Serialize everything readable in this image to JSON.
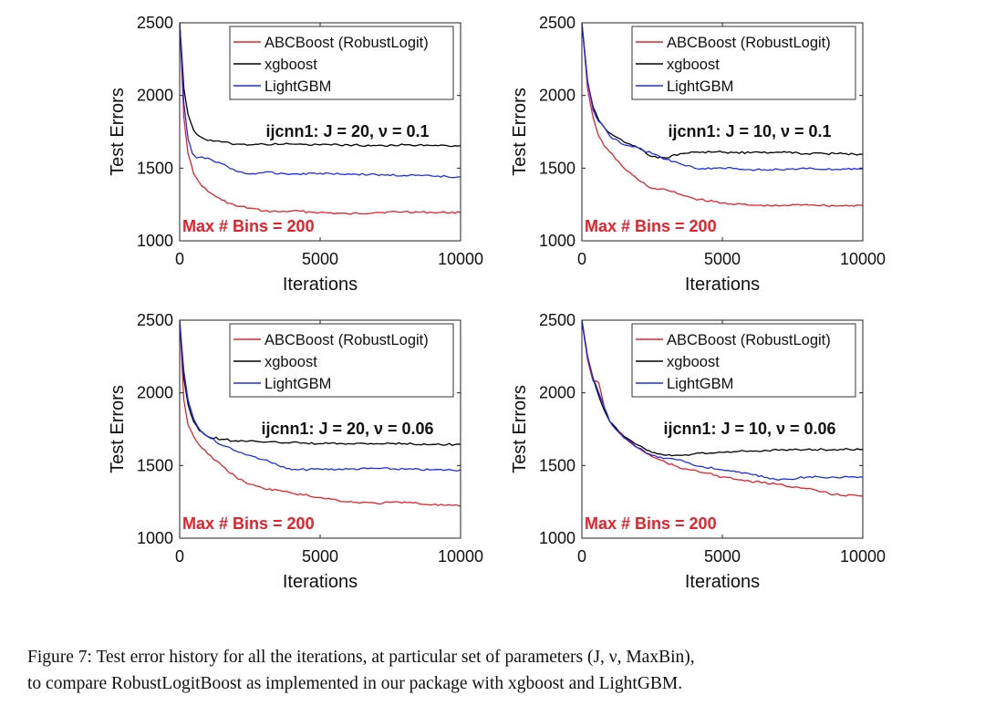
{
  "chart_data": [
    {
      "type": "line",
      "title": "ijcnn1: J = 20, ν = 0.1",
      "annotation": "Max # Bins =  200",
      "xlabel": "Iterations",
      "ylabel": "Test Errors",
      "xlim": [
        0,
        10000
      ],
      "ylim": [
        1000,
        2500
      ],
      "xticks": [
        0,
        5000,
        10000
      ],
      "yticks": [
        1000,
        1500,
        2000,
        2500
      ],
      "legend_position": "top-right",
      "series": [
        {
          "name": "ABCBoost (RobustLogit)",
          "color": "#e8202a",
          "x": [
            0,
            150,
            300,
            500,
            700,
            1000,
            1500,
            2000,
            2500,
            3000,
            3500,
            4000,
            5000,
            6000,
            7000,
            8000,
            9000,
            10000
          ],
          "y": [
            2500,
            1850,
            1600,
            1460,
            1400,
            1340,
            1280,
            1240,
            1225,
            1205,
            1200,
            1205,
            1195,
            1185,
            1195,
            1200,
            1195,
            1195
          ]
        },
        {
          "name": "xgboost",
          "color": "#000000",
          "x": [
            0,
            150,
            300,
            500,
            700,
            1000,
            1500,
            2000,
            2500,
            3000,
            4000,
            5000,
            6000,
            7000,
            8000,
            9000,
            10000
          ],
          "y": [
            2500,
            2050,
            1870,
            1760,
            1720,
            1690,
            1680,
            1665,
            1660,
            1665,
            1665,
            1660,
            1660,
            1655,
            1660,
            1655,
            1655
          ]
        },
        {
          "name": "LightGBM",
          "color": "#1f2cf0",
          "x": [
            0,
            150,
            300,
            450,
            600,
            1000,
            1500,
            2000,
            2500,
            3000,
            4000,
            5000,
            6000,
            7000,
            8000,
            9000,
            10000
          ],
          "y": [
            2500,
            1950,
            1700,
            1600,
            1570,
            1570,
            1530,
            1480,
            1460,
            1470,
            1460,
            1465,
            1460,
            1455,
            1450,
            1445,
            1440
          ]
        }
      ]
    },
    {
      "type": "line",
      "title": "ijcnn1: J = 10, ν = 0.1",
      "annotation": "Max # Bins =  200",
      "xlabel": "Iterations",
      "ylabel": "Test Errors",
      "xlim": [
        0,
        10000
      ],
      "ylim": [
        1000,
        2500
      ],
      "xticks": [
        0,
        5000,
        10000
      ],
      "yticks": [
        1000,
        1500,
        2000,
        2500
      ],
      "legend_position": "top-right",
      "series": [
        {
          "name": "ABCBoost (RobustLogit)",
          "color": "#e8202a",
          "x": [
            0,
            200,
            400,
            600,
            800,
            1000,
            1500,
            2000,
            2500,
            3000,
            3500,
            4000,
            5000,
            6000,
            7000,
            8000,
            9000,
            10000
          ],
          "y": [
            2500,
            2050,
            1850,
            1720,
            1650,
            1610,
            1500,
            1420,
            1360,
            1350,
            1320,
            1290,
            1260,
            1245,
            1240,
            1250,
            1240,
            1245
          ]
        },
        {
          "name": "xgboost",
          "color": "#000000",
          "x": [
            0,
            200,
            400,
            600,
            800,
            1000,
            1500,
            2000,
            2500,
            3000,
            3500,
            4000,
            5000,
            6000,
            7000,
            8000,
            9000,
            10000
          ],
          "y": [
            2500,
            2100,
            1920,
            1830,
            1780,
            1740,
            1680,
            1640,
            1580,
            1570,
            1600,
            1610,
            1610,
            1605,
            1610,
            1600,
            1600,
            1595
          ]
        },
        {
          "name": "LightGBM",
          "color": "#1f2cf0",
          "x": [
            0,
            200,
            400,
            600,
            800,
            1000,
            1500,
            2000,
            2500,
            3000,
            3500,
            4000,
            5000,
            6000,
            7000,
            8000,
            9000,
            10000
          ],
          "y": [
            2500,
            2100,
            1900,
            1820,
            1780,
            1720,
            1660,
            1640,
            1600,
            1560,
            1530,
            1500,
            1500,
            1490,
            1490,
            1495,
            1490,
            1495
          ]
        }
      ]
    },
    {
      "type": "line",
      "title": "ijcnn1: J = 20, ν = 0.06",
      "annotation": "Max # Bins =  200",
      "xlabel": "Iterations",
      "ylabel": "Test Errors",
      "xlim": [
        0,
        10000
      ],
      "ylim": [
        1000,
        2500
      ],
      "xticks": [
        0,
        5000,
        10000
      ],
      "yticks": [
        1000,
        1500,
        2000,
        2500
      ],
      "legend_position": "top-right",
      "series": [
        {
          "name": "ABCBoost (RobustLogit)",
          "color": "#e8202a",
          "x": [
            0,
            150,
            300,
            500,
            700,
            1000,
            1500,
            2000,
            2500,
            3000,
            3500,
            4000,
            5000,
            6000,
            7000,
            8000,
            9000,
            10000
          ],
          "y": [
            2500,
            1950,
            1780,
            1700,
            1640,
            1580,
            1500,
            1420,
            1370,
            1340,
            1330,
            1310,
            1280,
            1250,
            1240,
            1250,
            1230,
            1220
          ]
        },
        {
          "name": "xgboost",
          "color": "#000000",
          "x": [
            0,
            150,
            300,
            500,
            700,
            1000,
            1500,
            2000,
            2500,
            3000,
            4000,
            5000,
            6000,
            7000,
            8000,
            9000,
            10000
          ],
          "y": [
            2500,
            2100,
            1920,
            1800,
            1740,
            1700,
            1680,
            1670,
            1670,
            1660,
            1660,
            1650,
            1650,
            1650,
            1650,
            1645,
            1645
          ]
        },
        {
          "name": "LightGBM",
          "color": "#1f2cf0",
          "x": [
            0,
            150,
            300,
            500,
            700,
            1000,
            1500,
            2000,
            2500,
            3000,
            3500,
            4000,
            5000,
            6000,
            7000,
            8000,
            9000,
            10000
          ],
          "y": [
            2500,
            2150,
            1950,
            1820,
            1750,
            1700,
            1640,
            1600,
            1570,
            1540,
            1500,
            1470,
            1475,
            1475,
            1480,
            1475,
            1470,
            1470
          ]
        }
      ]
    },
    {
      "type": "line",
      "title": "ijcnn1: J = 10, ν = 0.06",
      "annotation": "Max # Bins =  200",
      "xlabel": "Iterations",
      "ylabel": "Test Errors",
      "xlim": [
        0,
        10000
      ],
      "ylim": [
        1000,
        2500
      ],
      "xticks": [
        0,
        5000,
        10000
      ],
      "yticks": [
        1000,
        1500,
        2000,
        2500
      ],
      "legend_position": "top-right",
      "series": [
        {
          "name": "ABCBoost (RobustLogit)",
          "color": "#e8202a",
          "x": [
            0,
            200,
            400,
            600,
            800,
            1000,
            1500,
            2000,
            2500,
            3000,
            3500,
            4000,
            5000,
            6000,
            7000,
            8000,
            9000,
            10000
          ],
          "y": [
            2500,
            2230,
            2080,
            2070,
            1900,
            1800,
            1700,
            1620,
            1560,
            1520,
            1480,
            1470,
            1420,
            1390,
            1370,
            1340,
            1300,
            1290
          ]
        },
        {
          "name": "xgboost",
          "color": "#000000",
          "x": [
            0,
            200,
            400,
            600,
            800,
            1000,
            1500,
            2000,
            2500,
            3000,
            3500,
            4000,
            5000,
            6000,
            7000,
            8000,
            9000,
            10000
          ],
          "y": [
            2500,
            2250,
            2100,
            1980,
            1880,
            1800,
            1700,
            1640,
            1590,
            1570,
            1570,
            1580,
            1590,
            1600,
            1605,
            1610,
            1610,
            1610
          ]
        },
        {
          "name": "LightGBM",
          "color": "#1f2cf0",
          "x": [
            0,
            200,
            400,
            600,
            800,
            1000,
            1500,
            2000,
            2500,
            3000,
            3500,
            4000,
            5000,
            6000,
            7000,
            8000,
            9000,
            10000
          ],
          "y": [
            2500,
            2250,
            2100,
            2000,
            1900,
            1800,
            1690,
            1620,
            1570,
            1550,
            1540,
            1500,
            1470,
            1440,
            1400,
            1420,
            1420,
            1420
          ]
        }
      ]
    }
  ],
  "caption": {
    "line1": "Figure 7: Test error history for all the iterations, at particular set of parameters (J, ν, MaxBin),",
    "line2": "to compare RobustLogitBoost as implemented in our package with xgboost and LightGBM."
  }
}
